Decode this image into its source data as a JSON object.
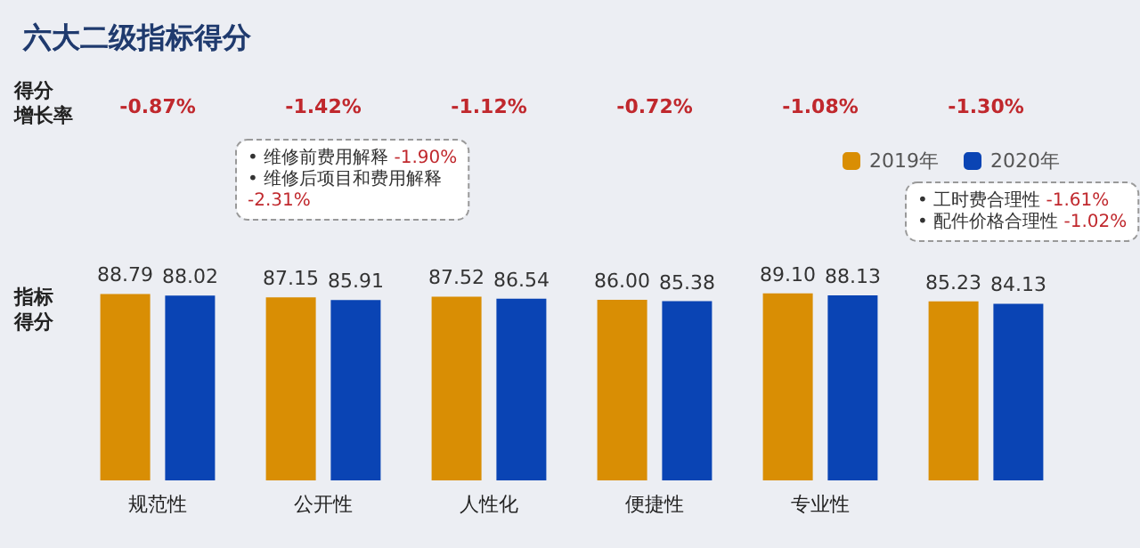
{
  "chart_data": {
    "type": "bar",
    "title": "六大二级指标得分",
    "categories": [
      "规范性",
      "公开性",
      "人性化",
      "便捷性",
      "专业性",
      null
    ],
    "series": [
      {
        "name": "2019年",
        "color": "#d98e04",
        "values": [
          88.79,
          87.15,
          87.52,
          86.0,
          89.1,
          85.23
        ],
        "value_labels": [
          "88.79",
          "87.15",
          "87.52",
          "86.00",
          "89.10",
          "85.23"
        ]
      },
      {
        "name": "2020年",
        "color": "#0a44b4",
        "values": [
          88.02,
          85.91,
          86.54,
          85.38,
          88.13,
          84.13
        ],
        "value_labels": [
          "88.02",
          "85.91",
          "86.54",
          "85.38",
          "88.13",
          "84.13"
        ]
      }
    ],
    "annotations": [
      "得分增长率",
      "指标得分",
      "-0.87%",
      "-1.42%",
      "-1.12%",
      "-0.72%",
      "-1.08%",
      "-1.30%",
      "• 维修前费用解释 -1.90%\n• 维修后项目和费用解释\n-2.31%",
      "• 工时费合理性 -1.61%\n• 配件价格合理性 -1.02%"
    ],
    "legend": "top right",
    "grid": false
  }
}
